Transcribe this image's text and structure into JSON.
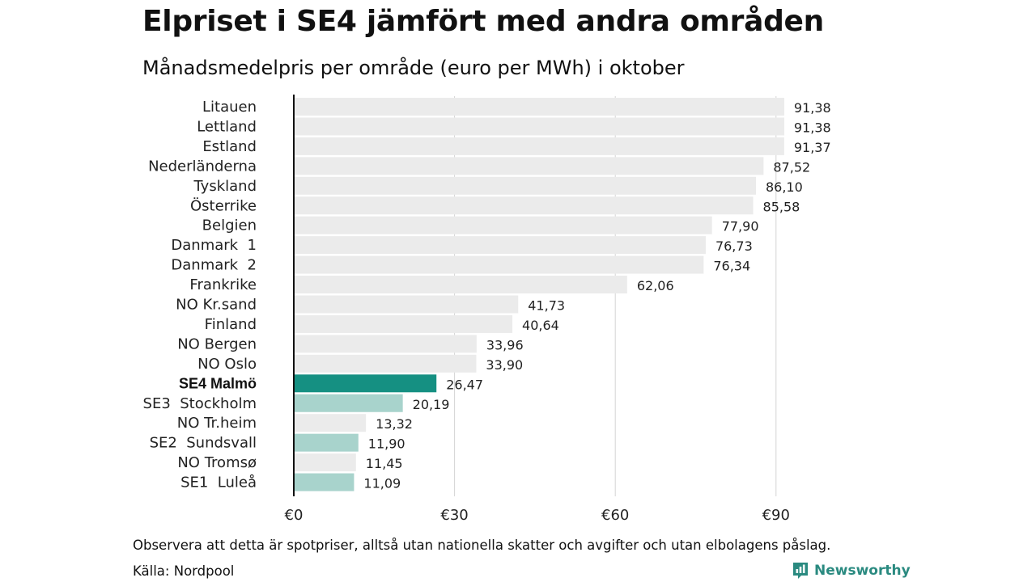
{
  "title": "Elpriset i SE4 jämfört med andra områden",
  "subtitle": "Månadsmedelpris per område (euro per MWh) i oktober",
  "note": "Observera att detta är spotpriser, alltså utan nationella skatter och avgifter och utan elbolagens påslag.",
  "source": "Källa: Nordpool",
  "brand": "Newsworthy",
  "colors": {
    "default_bar": "#ebebeb",
    "highlight_bar": "#159082",
    "sweden_bar": "#a8d3cc",
    "grid": "#d4d4d4",
    "axis": "#111111",
    "brand": "#2a8a80"
  },
  "chart_data": {
    "type": "bar",
    "orientation": "horizontal",
    "categories": [
      "Litauen",
      "Lettland",
      "Estland",
      "Nederländerna",
      "Tyskland",
      "Österrike",
      "Belgien",
      "Danmark  1",
      "Danmark  2",
      "Frankrike",
      "NO Kr.sand",
      "Finland",
      "NO Bergen",
      "NO Oslo",
      "SE4 Malmö",
      "SE3  Stockholm",
      "NO Tr.heim",
      "SE2  Sundsvall",
      "NO Tromsø",
      "SE1  Luleå"
    ],
    "values": [
      91.38,
      91.38,
      91.37,
      87.52,
      86.1,
      85.58,
      77.9,
      76.73,
      76.34,
      62.06,
      41.73,
      40.64,
      33.96,
      33.9,
      26.47,
      20.19,
      13.32,
      11.9,
      11.45,
      11.09
    ],
    "value_labels": [
      "91,38",
      "91,38",
      "91,37",
      "87,52",
      "86,10",
      "85,58",
      "77,90",
      "76,73",
      "76,34",
      "62,06",
      "41,73",
      "40,64",
      "33,96",
      "33,90",
      "26,47",
      "20,19",
      "13,32",
      "11,90",
      "11,45",
      "11,09"
    ],
    "bar_style": [
      "default",
      "default",
      "default",
      "default",
      "default",
      "default",
      "default",
      "default",
      "default",
      "default",
      "default",
      "default",
      "default",
      "default",
      "highlight",
      "sweden",
      "default",
      "sweden",
      "default",
      "sweden"
    ],
    "xlim": [
      0,
      95
    ],
    "xticks": [
      0,
      30,
      60,
      90
    ],
    "xtick_labels": [
      "€0",
      "€30",
      "€60",
      "€90"
    ],
    "grid": "vertical",
    "legend": "none"
  }
}
